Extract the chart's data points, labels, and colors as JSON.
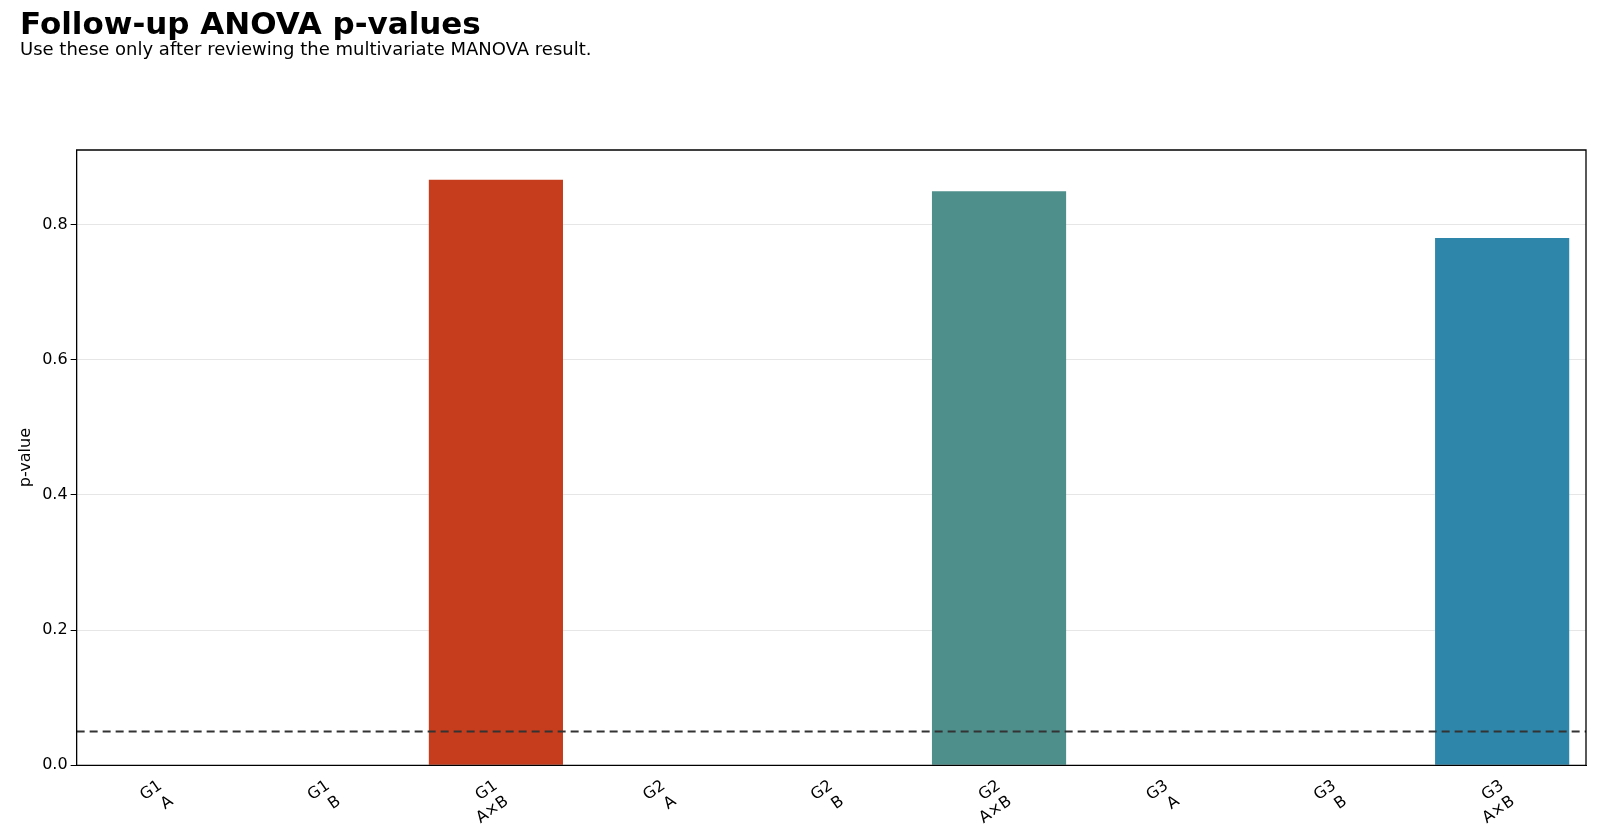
{
  "chart_data": {
    "type": "bar",
    "title": "Follow-up ANOVA p-values",
    "subtitle": "Use these only after reviewing the multivariate MANOVA result.",
    "ylabel": "p-value",
    "categories": [
      "G1\nA",
      "G1\nB",
      "G1\nA×B",
      "G2\nA",
      "G2\nB",
      "G2\nA×B",
      "G3\nA",
      "G3\nB",
      "G3\nA×B"
    ],
    "values": [
      0,
      0,
      0.866,
      0,
      0,
      0.849,
      0,
      0,
      0.78
    ],
    "colors": [
      "#c53d1c",
      "#c53d1c",
      "#c53d1c",
      "#4e8f8c",
      "#4e8f8c",
      "#4e8f8c",
      "#2e86ab",
      "#2e86ab",
      "#2e86ab"
    ],
    "ylim": [
      0,
      0.91
    ],
    "yticks": [
      {
        "value": 0,
        "label": "0.0"
      },
      0.2,
      0.4,
      0.6,
      0.8
    ],
    "grid": "y",
    "legend": false,
    "ref_lines": [
      {
        "axis": "y",
        "value": 0.05,
        "color": "#333333",
        "line_style": "dashed"
      }
    ]
  }
}
